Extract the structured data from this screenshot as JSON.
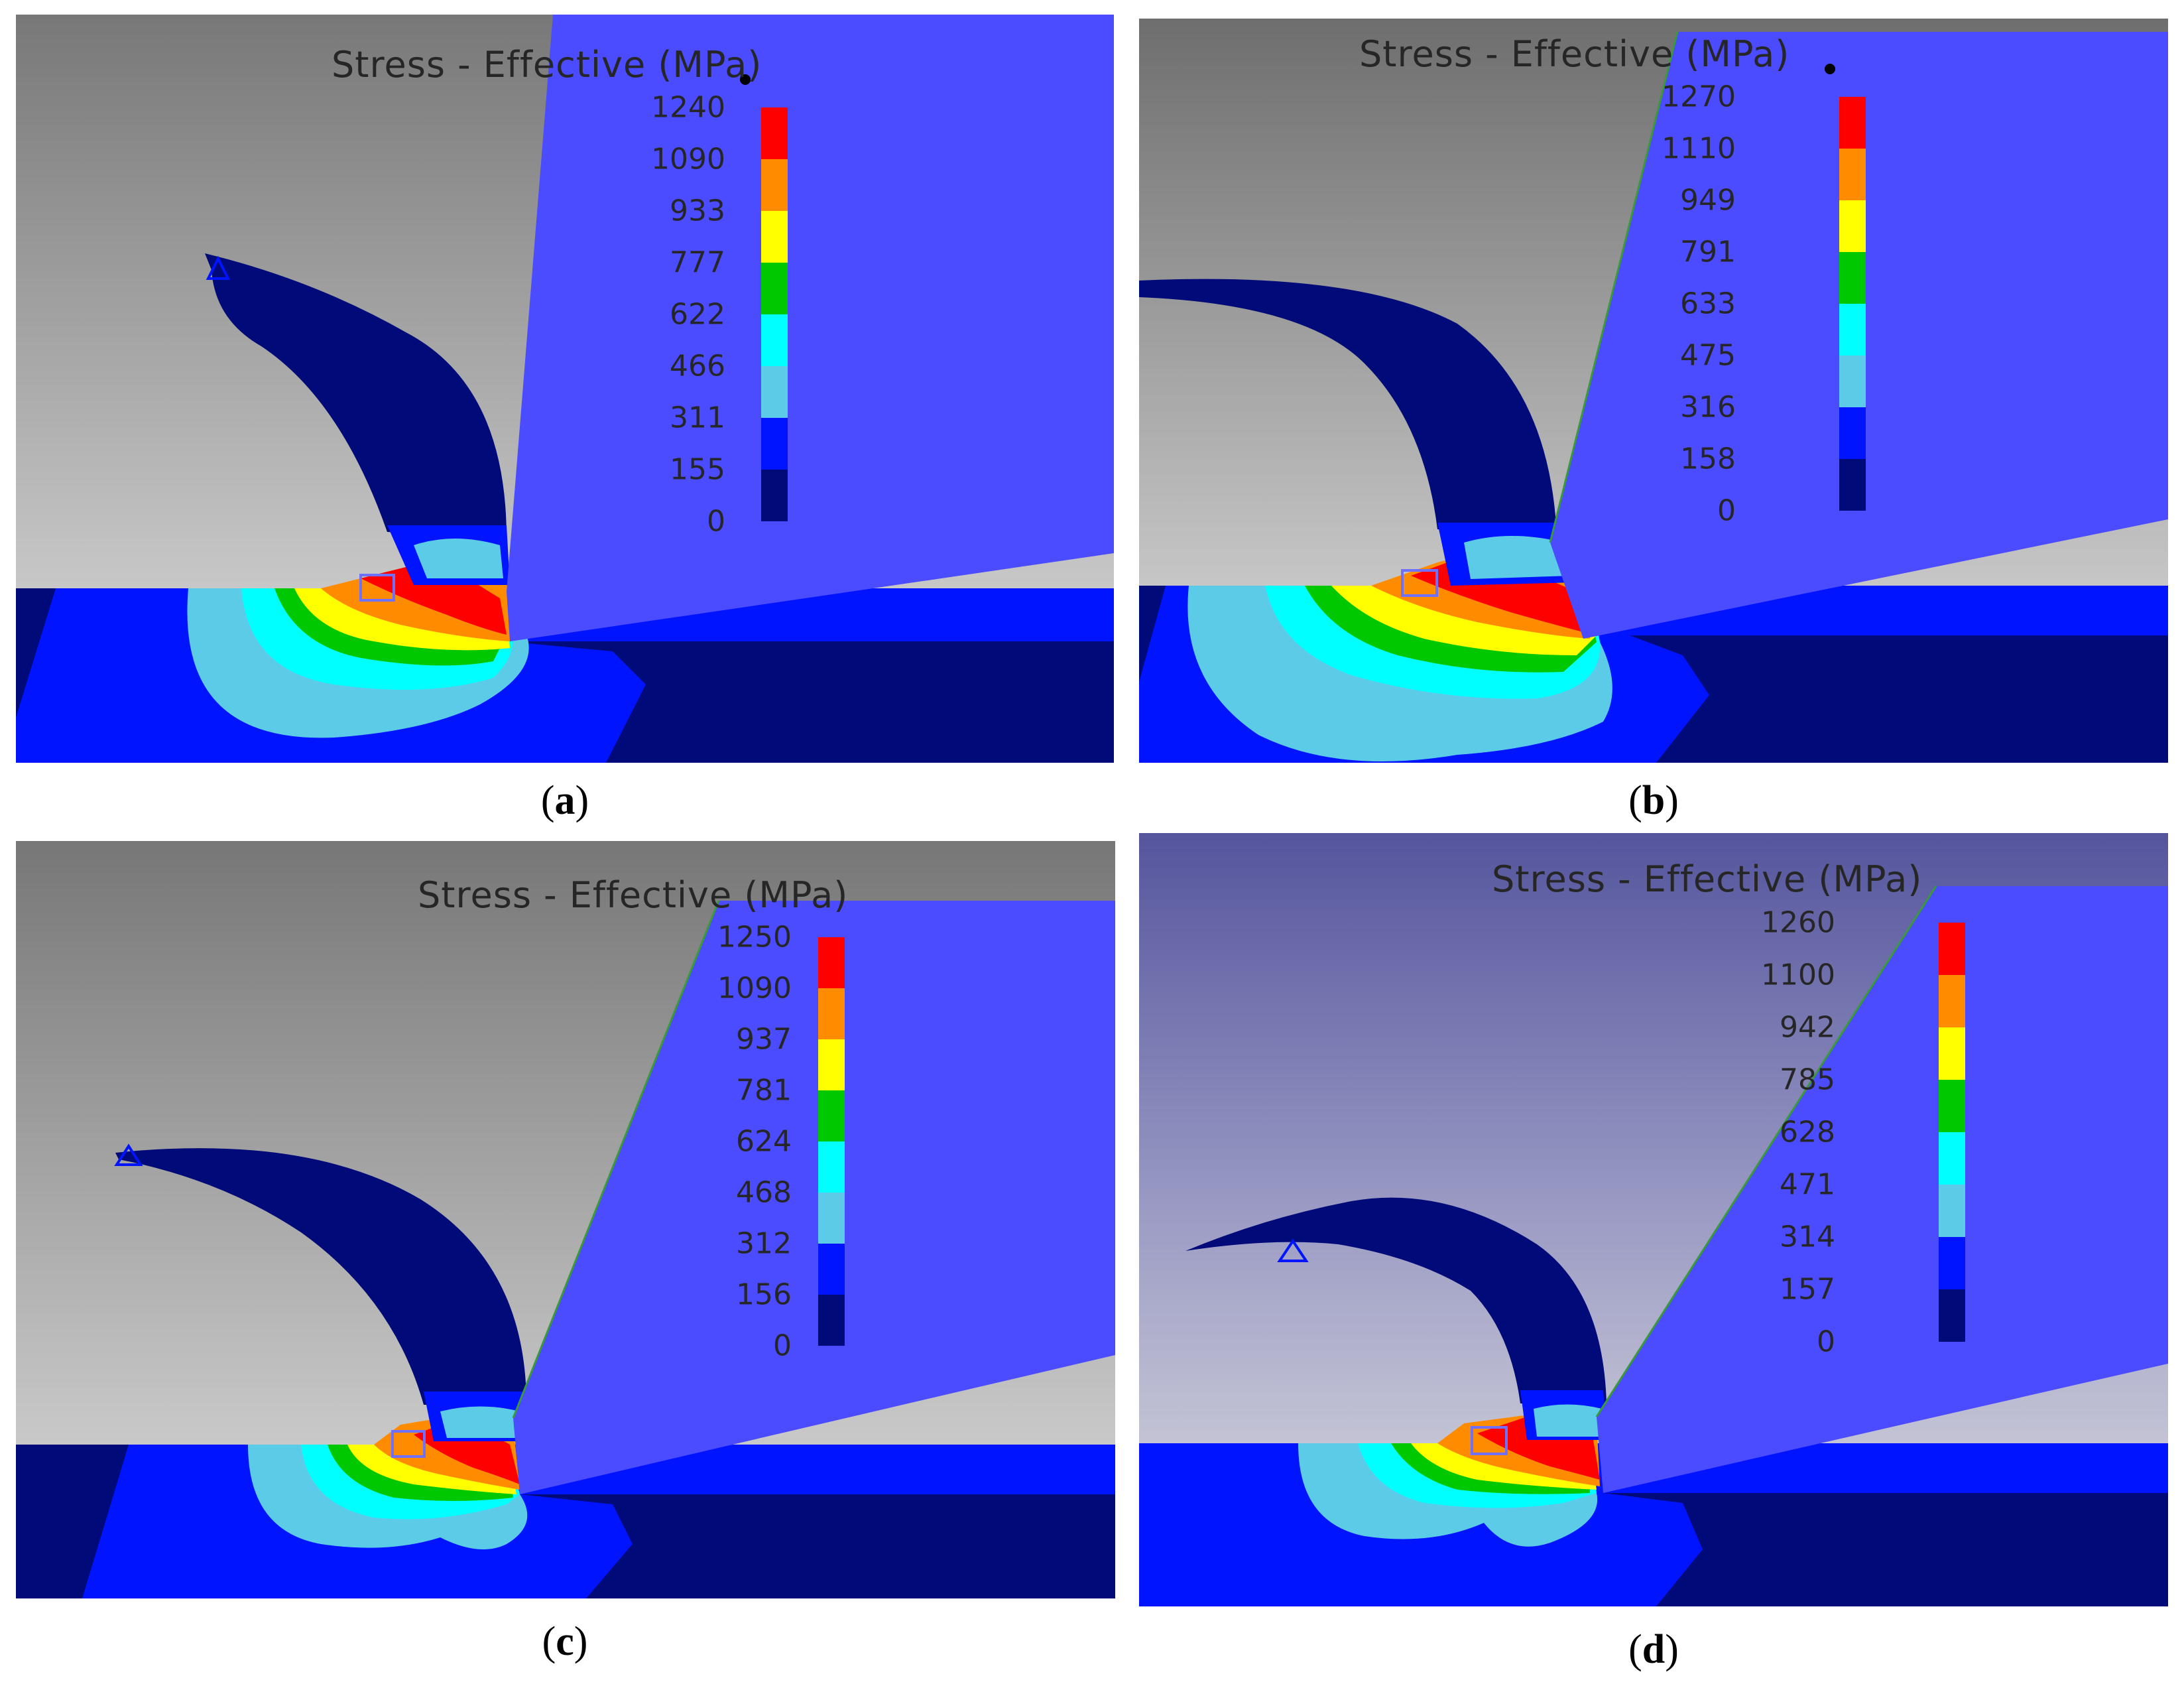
{
  "panels": [
    {
      "id": "a",
      "title": "Stress - Effective (MPa)",
      "ticks": [
        "1240",
        "1090",
        "933",
        "777",
        "622",
        "466",
        "311",
        "155",
        "0"
      ],
      "caption_letter": "a"
    },
    {
      "id": "b",
      "title": "Stress - Effective (MPa)",
      "ticks": [
        "1270",
        "1110",
        "949",
        "791",
        "633",
        "475",
        "316",
        "158",
        "0"
      ],
      "caption_letter": "b"
    },
    {
      "id": "c",
      "title": "Stress - Effective (MPa)",
      "ticks": [
        "1250",
        "1090",
        "937",
        "781",
        "624",
        "468",
        "312",
        "156",
        "0"
      ],
      "caption_letter": "c"
    },
    {
      "id": "d",
      "title": "Stress - Effective (MPa)",
      "ticks": [
        "1260",
        "1100",
        "942",
        "785",
        "628",
        "471",
        "314",
        "157",
        "0"
      ],
      "caption_letter": "d"
    }
  ],
  "legend_colors": [
    "#ff0000",
    "#ff8c00",
    "#ffff00",
    "#00c800",
    "#00ffff",
    "#5ccbe8",
    "#0014ff",
    "#000a78"
  ],
  "colors": {
    "tool": "#4b4bff",
    "chip": "#000a78",
    "workpiece": "#0014ff",
    "background_gray": "#bdbdbd",
    "background_dark": "#777777",
    "panel_d_sky": "#5a5aa8"
  }
}
